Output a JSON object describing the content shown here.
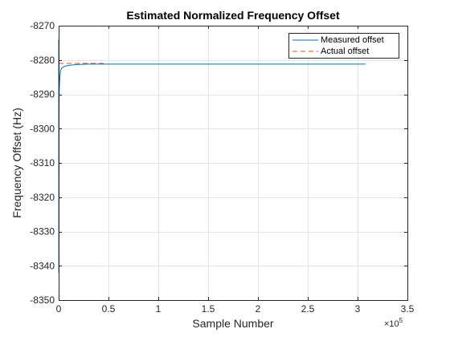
{
  "chart_data": {
    "type": "line",
    "title": "Estimated Normalized Frequency Offset",
    "xlabel": "Sample Number",
    "ylabel": "Frequency Offset (Hz)",
    "x_exponent_base": "×10",
    "x_exponent_power": "5",
    "xlim": [
      0,
      3.5
    ],
    "ylim": [
      -8350,
      -8270
    ],
    "x_ticks": [
      0,
      0.5,
      1,
      1.5,
      2,
      2.5,
      3,
      3.5
    ],
    "x_tick_labels": [
      "0",
      "0.5",
      "1",
      "1.5",
      "2",
      "2.5",
      "3",
      "3.5"
    ],
    "y_ticks": [
      -8350,
      -8340,
      -8330,
      -8320,
      -8310,
      -8300,
      -8290,
      -8280,
      -8270
    ],
    "y_tick_labels": [
      "-8350",
      "-8340",
      "-8330",
      "-8320",
      "-8310",
      "-8300",
      "-8290",
      "-8280",
      "-8270"
    ],
    "grid": true,
    "legend_position": "top-right",
    "series": [
      {
        "name": "Measured offset",
        "color": "#0072BD",
        "style": "solid",
        "x": [
          0,
          0.001,
          0.002,
          0.004,
          0.006,
          0.01,
          0.015,
          0.02,
          0.03,
          0.05,
          0.08,
          0.12,
          0.2,
          0.3,
          0.5,
          1.0,
          1.5,
          2.0,
          2.5,
          3.0,
          3.08
        ],
        "y": [
          -8274,
          -8342,
          -8310,
          -8295,
          -8289,
          -8286,
          -8284,
          -8283,
          -8282.4,
          -8282,
          -8281.7,
          -8281.5,
          -8281.3,
          -8281.2,
          -8281.2,
          -8281.2,
          -8281.2,
          -8281.2,
          -8281.2,
          -8281.2,
          -8281.2
        ]
      },
      {
        "name": "Actual offset",
        "color": "#D95319",
        "style": "dashed",
        "x": [
          0,
          0.47
        ],
        "y": [
          -8281,
          -8281
        ]
      }
    ]
  }
}
